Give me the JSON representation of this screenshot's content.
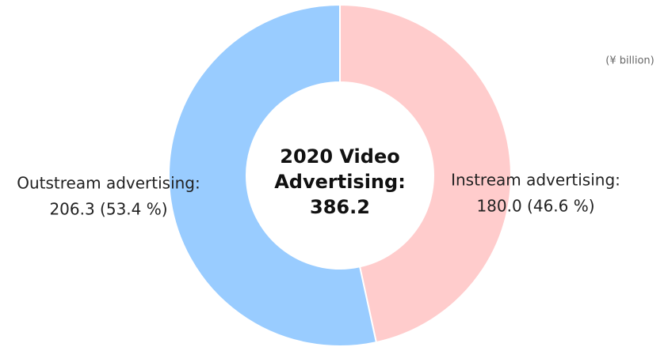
{
  "chart_data": {
    "type": "donut",
    "title": "2020 Video Advertising:",
    "total": 386.2,
    "unit": "(¥ billion)",
    "categories": [
      "Instream advertising:",
      "Outstream advertising:"
    ],
    "values": [
      180.0,
      206.3
    ],
    "value_labels": [
      "180.0 (46.6 %)",
      "206.3 (53.4 %)"
    ],
    "colors": [
      "#ffcccc",
      "#99ccff"
    ]
  }
}
